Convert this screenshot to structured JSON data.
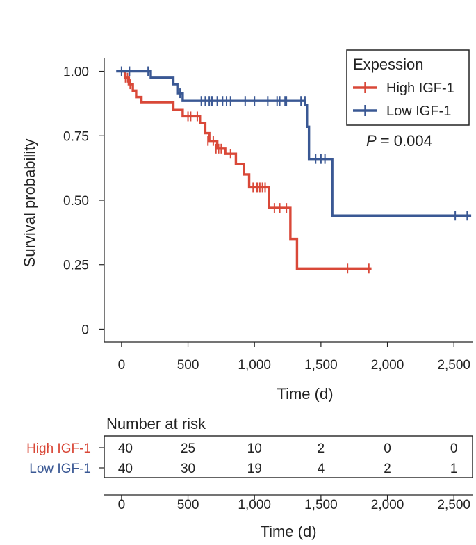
{
  "chart_data": {
    "type": "kaplan-meier",
    "title": "",
    "xlabel": "Time (d)",
    "ylabel": "Survival probability",
    "xlim": [
      -130,
      2640
    ],
    "ylim": [
      -0.05,
      1.05
    ],
    "xticks": [
      0,
      500,
      1000,
      1500,
      2000,
      2500
    ],
    "xtick_labels": [
      "0",
      "500",
      "1,000",
      "1,500",
      "2,000",
      "2,500"
    ],
    "yticks": [
      0,
      0.25,
      0.5,
      0.75,
      1.0
    ],
    "ytick_labels": [
      "0",
      "0.25",
      "0.50",
      "0.75",
      "1.00"
    ],
    "legend": {
      "title": "Expession",
      "position": "top-right",
      "entries": [
        "High IGF-1",
        "Low IGF-1"
      ]
    },
    "annotation": {
      "italic": "P",
      "rest": " = 0.004"
    },
    "series": [
      {
        "name": "High IGF-1",
        "color": "#d94838",
        "steps": [
          [
            0,
            1.0
          ],
          [
            25,
            0.975
          ],
          [
            55,
            0.95
          ],
          [
            85,
            0.925
          ],
          [
            110,
            0.9
          ],
          [
            150,
            0.88
          ],
          [
            390,
            0.85
          ],
          [
            460,
            0.825
          ],
          [
            590,
            0.8
          ],
          [
            630,
            0.76
          ],
          [
            660,
            0.73
          ],
          [
            720,
            0.7
          ],
          [
            780,
            0.68
          ],
          [
            860,
            0.64
          ],
          [
            920,
            0.6
          ],
          [
            960,
            0.55
          ],
          [
            1110,
            0.47
          ],
          [
            1270,
            0.35
          ],
          [
            1320,
            0.235
          ],
          [
            1880,
            0.235
          ]
        ],
        "censors": [
          [
            30,
            0.975
          ],
          [
            45,
            0.975
          ],
          [
            65,
            0.95
          ],
          [
            500,
            0.825
          ],
          [
            520,
            0.825
          ],
          [
            570,
            0.825
          ],
          [
            650,
            0.73
          ],
          [
            690,
            0.73
          ],
          [
            710,
            0.7
          ],
          [
            730,
            0.7
          ],
          [
            750,
            0.7
          ],
          [
            820,
            0.68
          ],
          [
            990,
            0.55
          ],
          [
            1020,
            0.55
          ],
          [
            1040,
            0.55
          ],
          [
            1060,
            0.55
          ],
          [
            1080,
            0.55
          ],
          [
            1150,
            0.47
          ],
          [
            1190,
            0.47
          ],
          [
            1240,
            0.47
          ],
          [
            1700,
            0.235
          ],
          [
            1860,
            0.235
          ]
        ]
      },
      {
        "name": "Low IGF-1",
        "color": "#3a5894",
        "steps": [
          [
            -40,
            1.0
          ],
          [
            220,
            0.975
          ],
          [
            390,
            0.95
          ],
          [
            420,
            0.915
          ],
          [
            460,
            0.885
          ],
          [
            1380,
            0.87
          ],
          [
            1395,
            0.785
          ],
          [
            1410,
            0.66
          ],
          [
            1585,
            0.44
          ],
          [
            2630,
            0.44
          ]
        ],
        "censors": [
          [
            0,
            1.0
          ],
          [
            60,
            1.0
          ],
          [
            200,
            1.0
          ],
          [
            440,
            0.915
          ],
          [
            600,
            0.885
          ],
          [
            630,
            0.885
          ],
          [
            660,
            0.885
          ],
          [
            680,
            0.885
          ],
          [
            720,
            0.885
          ],
          [
            760,
            0.885
          ],
          [
            790,
            0.885
          ],
          [
            820,
            0.885
          ],
          [
            930,
            0.885
          ],
          [
            1000,
            0.885
          ],
          [
            1100,
            0.885
          ],
          [
            1170,
            0.885
          ],
          [
            1190,
            0.885
          ],
          [
            1230,
            0.885
          ],
          [
            1240,
            0.885
          ],
          [
            1350,
            0.885
          ],
          [
            1380,
            0.885
          ],
          [
            1460,
            0.66
          ],
          [
            1500,
            0.66
          ],
          [
            1530,
            0.66
          ],
          [
            2510,
            0.44
          ],
          [
            2600,
            0.44
          ]
        ]
      }
    ],
    "risk_table": {
      "title": "Number at risk",
      "times": [
        0,
        500,
        1000,
        1500,
        2000,
        2500
      ],
      "time_labels": [
        "0",
        "500",
        "1,000",
        "1,500",
        "2,000",
        "2,500"
      ],
      "xlabel": "Time (d)",
      "rows": [
        {
          "name": "High IGF-1",
          "color": "#d94838",
          "counts": [
            "40",
            "25",
            "10",
            "2",
            "0",
            "0"
          ]
        },
        {
          "name": "Low IGF-1",
          "color": "#3a5894",
          "counts": [
            "40",
            "30",
            "19",
            "4",
            "2",
            "1"
          ]
        }
      ]
    }
  }
}
